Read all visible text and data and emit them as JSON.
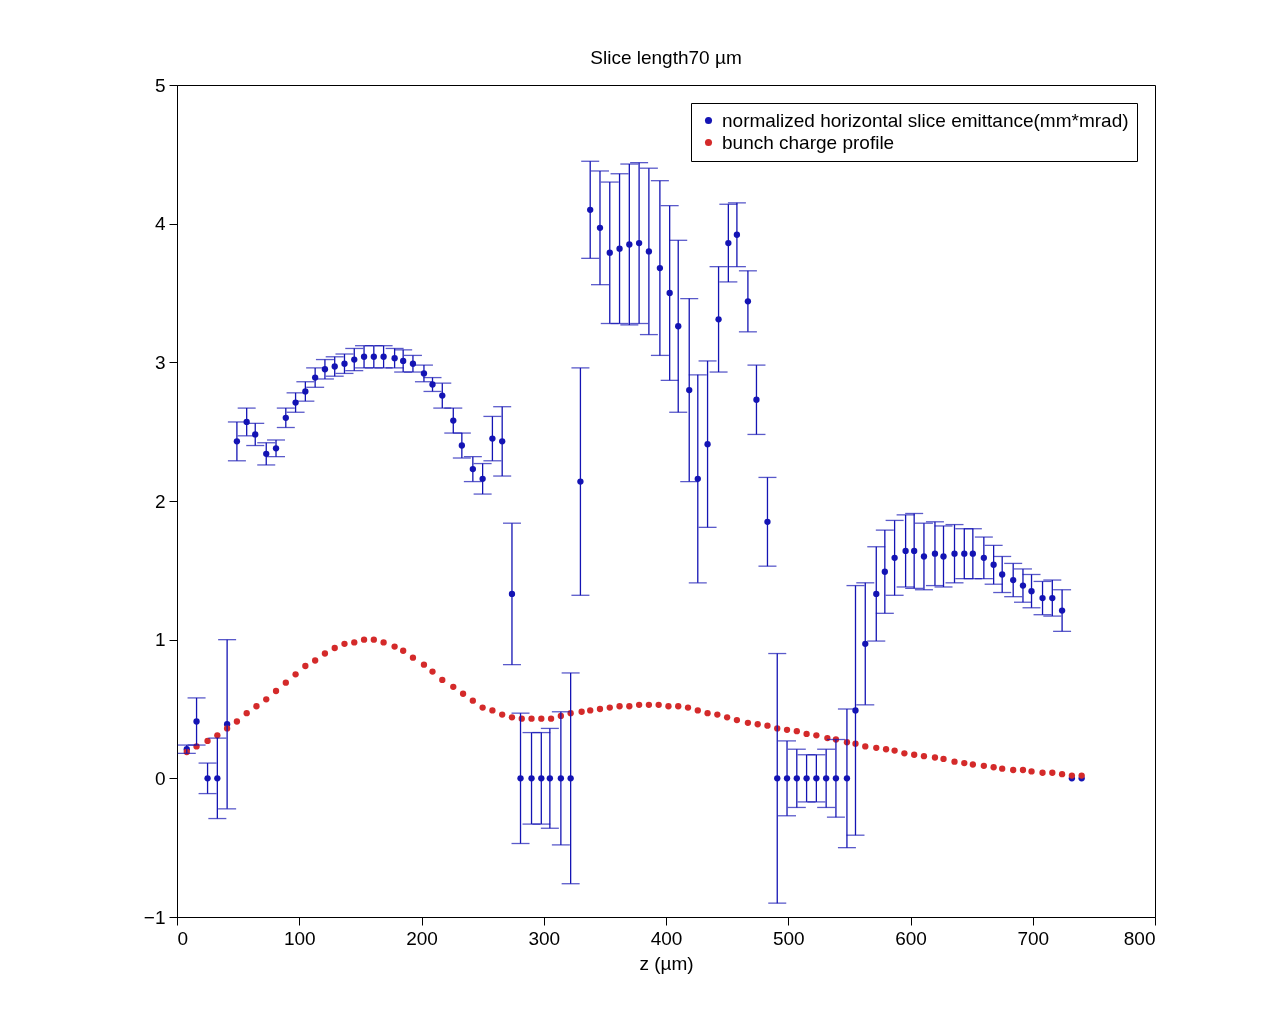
{
  "chart_data": {
    "type": "scatter",
    "title": "Slice length70 µm",
    "xlabel": "z (µm)",
    "xlim": [
      0,
      800
    ],
    "xticks": [
      0,
      100,
      200,
      300,
      400,
      500,
      600,
      700,
      800
    ],
    "ylim": [
      -1,
      5
    ],
    "yticks": [
      -1,
      0,
      1,
      2,
      3,
      4,
      5
    ],
    "grid": false,
    "legend": "top right",
    "marker": "circle",
    "series": [
      {
        "name": "normalized horizontal slice emittance(mm*mrad)",
        "color": "#1414b4",
        "x": [
          8,
          16,
          25,
          33,
          41,
          49,
          57,
          64,
          73,
          81,
          89,
          97,
          105,
          113,
          121,
          129,
          137,
          145,
          153,
          161,
          169,
          178,
          185,
          193,
          202,
          209,
          217,
          226,
          233,
          242,
          250,
          258,
          266,
          274,
          281,
          290,
          298,
          305,
          314,
          322,
          330,
          338,
          346,
          354,
          362,
          370,
          378,
          386,
          395,
          403,
          410,
          419,
          426,
          434,
          443,
          451,
          458,
          467,
          474,
          483,
          491,
          499,
          507,
          515,
          523,
          531,
          539,
          548,
          555,
          563,
          572,
          579,
          587,
          596,
          603,
          611,
          620,
          627,
          636,
          644,
          651,
          660,
          668,
          675,
          684,
          692,
          699,
          708,
          716,
          724,
          732,
          740
        ],
        "values": [
          0.21,
          0.41,
          0,
          0,
          0.39,
          2.43,
          2.57,
          2.48,
          2.34,
          2.38,
          2.6,
          2.71,
          2.79,
          2.89,
          2.95,
          2.97,
          2.99,
          3.02,
          3.04,
          3.04,
          3.04,
          3.03,
          3.01,
          2.99,
          2.92,
          2.84,
          2.76,
          2.58,
          2.4,
          2.23,
          2.16,
          2.45,
          2.43,
          1.33,
          0,
          0,
          0,
          0,
          0,
          0,
          2.14,
          4.1,
          3.97,
          3.79,
          3.82,
          3.85,
          3.86,
          3.8,
          3.68,
          3.5,
          3.26,
          2.8,
          2.16,
          2.41,
          3.31,
          3.86,
          3.92,
          3.44,
          2.73,
          1.85,
          0,
          0,
          0,
          0,
          0,
          0,
          0,
          0,
          0.49,
          0.97,
          1.33,
          1.49,
          1.59,
          1.64,
          1.64,
          1.6,
          1.62,
          1.6,
          1.62,
          1.62,
          1.62,
          1.59,
          1.54,
          1.47,
          1.43,
          1.39,
          1.35,
          1.3,
          1.3,
          1.21,
          0,
          0
        ],
        "errors": [
          0.03,
          0.17,
          0.11,
          0.29,
          0.61,
          0.14,
          0.1,
          0.08,
          0.08,
          0.06,
          0.07,
          0.07,
          0.07,
          0.07,
          0.07,
          0.07,
          0.07,
          0.08,
          0.08,
          0.08,
          0.08,
          0.07,
          0.08,
          0.06,
          0.06,
          0.05,
          0.09,
          0.09,
          0.09,
          0.09,
          0.11,
          0.16,
          0.25,
          0.51,
          0.47,
          0.33,
          0.33,
          0.36,
          0.48,
          0.76,
          0.82,
          0.35,
          0.41,
          0.51,
          0.54,
          0.58,
          0.58,
          0.6,
          0.63,
          0.63,
          0.62,
          0.66,
          0.75,
          0.6,
          0.38,
          0.28,
          0.23,
          0.22,
          0.25,
          0.32,
          0.9,
          0.27,
          0.21,
          0.17,
          0.17,
          0.21,
          0.28,
          0.5,
          0.9,
          0.44,
          0.34,
          0.3,
          0.27,
          0.26,
          0.27,
          0.24,
          0.23,
          0.22,
          0.21,
          0.18,
          0.18,
          0.15,
          0.14,
          0.13,
          0.12,
          0.12,
          0.12,
          0.12,
          0.13,
          0.15,
          null,
          null
        ]
      },
      {
        "name": "bunch charge profile",
        "color": "#d42a2a",
        "x": [
          8,
          16,
          25,
          33,
          41,
          49,
          57,
          65,
          73,
          81,
          89,
          97,
          105,
          113,
          121,
          129,
          137,
          145,
          153,
          161,
          169,
          178,
          185,
          193,
          202,
          209,
          217,
          226,
          234,
          242,
          250,
          258,
          266,
          274,
          282,
          290,
          298,
          306,
          314,
          322,
          331,
          338,
          346,
          354,
          362,
          370,
          378,
          386,
          394,
          402,
          410,
          418,
          426,
          434,
          442,
          450,
          458,
          467,
          475,
          483,
          491,
          499,
          507,
          515,
          523,
          532,
          539,
          548,
          555,
          563,
          572,
          580,
          587,
          595,
          603,
          611,
          620,
          627,
          636,
          644,
          651,
          660,
          668,
          675,
          684,
          692,
          699,
          708,
          716,
          724,
          732,
          740
        ],
        "values": [
          0.19,
          0.23,
          0.27,
          0.31,
          0.36,
          0.41,
          0.47,
          0.52,
          0.57,
          0.63,
          0.69,
          0.75,
          0.81,
          0.85,
          0.9,
          0.94,
          0.97,
          0.98,
          1.0,
          1.0,
          0.98,
          0.95,
          0.92,
          0.87,
          0.82,
          0.77,
          0.71,
          0.66,
          0.61,
          0.56,
          0.51,
          0.49,
          0.46,
          0.44,
          0.43,
          0.43,
          0.43,
          0.43,
          0.45,
          0.47,
          0.48,
          0.49,
          0.5,
          0.51,
          0.52,
          0.52,
          0.53,
          0.53,
          0.53,
          0.52,
          0.52,
          0.51,
          0.49,
          0.47,
          0.46,
          0.44,
          0.42,
          0.4,
          0.39,
          0.38,
          0.36,
          0.35,
          0.34,
          0.32,
          0.31,
          0.29,
          0.28,
          0.26,
          0.25,
          0.23,
          0.22,
          0.21,
          0.2,
          0.18,
          0.17,
          0.16,
          0.15,
          0.14,
          0.12,
          0.11,
          0.1,
          0.09,
          0.08,
          0.07,
          0.06,
          0.06,
          0.05,
          0.04,
          0.04,
          0.03,
          0.02,
          0.02
        ]
      }
    ]
  }
}
